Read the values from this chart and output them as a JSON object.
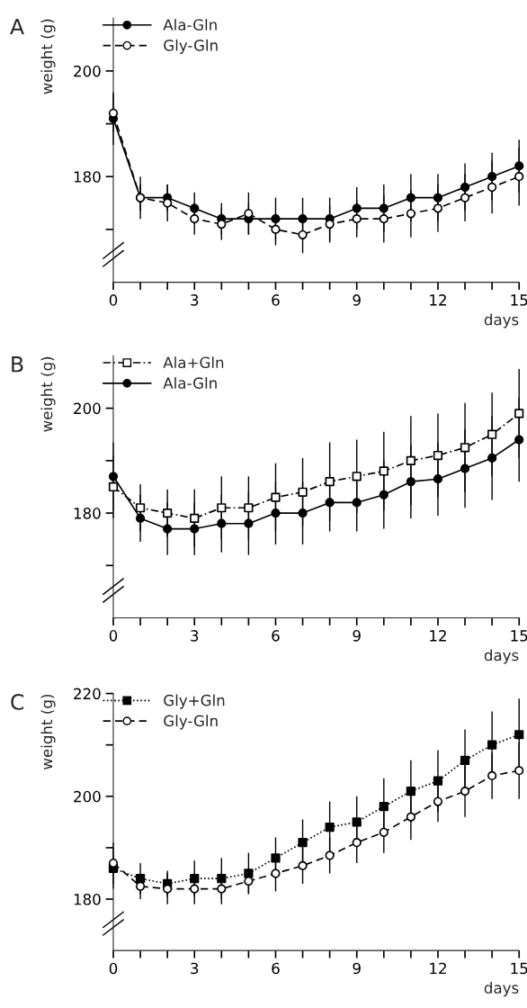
{
  "chart_data": [
    {
      "type": "line",
      "title": "A",
      "xlabel": "days",
      "ylabel": "weight (g)",
      "x": [
        0,
        1,
        2,
        3,
        4,
        5,
        6,
        7,
        8,
        9,
        10,
        11,
        12,
        13,
        14,
        15
      ],
      "xlim": [
        0,
        15
      ],
      "xticks": [
        0,
        {
          "value": 1,
          "label": null
        },
        {
          "value": 2,
          "label": null
        },
        3,
        {
          "value": 4,
          "label": null
        },
        {
          "value": 5,
          "label": null
        },
        6,
        {
          "value": 7,
          "label": null
        },
        {
          "value": 8,
          "label": null
        },
        9,
        {
          "value": 10,
          "label": null
        },
        {
          "value": 11,
          "label": null
        },
        12,
        {
          "value": 13,
          "label": null
        },
        {
          "value": 14,
          "label": null
        },
        15
      ],
      "ylim": [
        160,
        210
      ],
      "yticks": [
        {
          "value": 170,
          "label": null
        },
        180,
        {
          "value": 190,
          "label": null
        },
        200
      ],
      "legend": "top left",
      "grid": false,
      "series": [
        {
          "name": "Ala-Gln",
          "color": "#000000",
          "marker": "circle",
          "line_style": "solid",
          "values": [
            191,
            176,
            176,
            174,
            172,
            172,
            172,
            172,
            172,
            174,
            174,
            176,
            176,
            178,
            180,
            182
          ],
          "errors": [
            5,
            2.5,
            2.5,
            3,
            3,
            3,
            4,
            4,
            4,
            4,
            4.5,
            4.5,
            4.5,
            4.5,
            4.5,
            5
          ]
        },
        {
          "name": "Gly-Gln",
          "color": "#000000",
          "marker": "circle open",
          "line_style": "dashed",
          "values": [
            192,
            176,
            175,
            172,
            171,
            173,
            170,
            169,
            171,
            172,
            172,
            173,
            174,
            176,
            178,
            180
          ],
          "errors": [
            3.5,
            4,
            3.5,
            3,
            3,
            4,
            3,
            3.5,
            3.5,
            3.5,
            4.5,
            4.5,
            4.5,
            4.5,
            5,
            5.5
          ]
        }
      ]
    },
    {
      "type": "line",
      "title": "B",
      "xlabel": "days",
      "ylabel": "weight (g)",
      "x": [
        0,
        1,
        2,
        3,
        4,
        5,
        6,
        7,
        8,
        9,
        10,
        11,
        12,
        13,
        14,
        15
      ],
      "xlim": [
        0,
        15
      ],
      "xticks": [
        0,
        {
          "value": 1,
          "label": null
        },
        {
          "value": 2,
          "label": null
        },
        3,
        {
          "value": 4,
          "label": null
        },
        {
          "value": 5,
          "label": null
        },
        6,
        {
          "value": 7,
          "label": null
        },
        {
          "value": 8,
          "label": null
        },
        9,
        {
          "value": 10,
          "label": null
        },
        {
          "value": 11,
          "label": null
        },
        12,
        {
          "value": 13,
          "label": null
        },
        {
          "value": 14,
          "label": null
        },
        15
      ],
      "ylim": [
        160,
        210
      ],
      "yticks": [
        {
          "value": 170,
          "label": null
        },
        180,
        {
          "value": 190,
          "label": null
        },
        200
      ],
      "legend": "top left",
      "grid": false,
      "series": [
        {
          "name": "Ala+Gln",
          "color": "#000000",
          "marker": "square open",
          "line_style": "dashdot",
          "values": [
            185,
            181,
            180,
            179,
            181,
            181,
            183,
            184,
            186,
            187,
            188,
            190,
            191,
            192.5,
            195,
            199
          ],
          "errors": [
            6,
            4.5,
            4.5,
            5.5,
            6,
            6,
            6.5,
            6.5,
            7.5,
            7,
            7.5,
            8.5,
            8,
            8.5,
            8,
            8.5
          ]
        },
        {
          "name": "Ala-Gln",
          "color": "#000000",
          "marker": "circle",
          "line_style": "solid",
          "values": [
            187,
            179,
            177,
            177,
            178,
            178,
            180,
            180,
            182,
            182,
            183.5,
            186,
            186.5,
            188.5,
            190.5,
            194
          ],
          "errors": [
            6.5,
            4.5,
            5,
            5,
            5.5,
            6,
            6,
            6,
            5.5,
            5.5,
            6.5,
            7,
            7,
            7.5,
            8,
            8
          ]
        }
      ]
    },
    {
      "type": "line",
      "title": "C",
      "xlabel": "days",
      "ylabel": "weight (g)",
      "x": [
        0,
        1,
        2,
        3,
        4,
        5,
        6,
        7,
        8,
        9,
        10,
        11,
        12,
        13,
        14,
        15
      ],
      "xlim": [
        0,
        15
      ],
      "xticks": [
        0,
        {
          "value": 1,
          "label": null
        },
        {
          "value": 2,
          "label": null
        },
        3,
        {
          "value": 4,
          "label": null
        },
        {
          "value": 5,
          "label": null
        },
        6,
        {
          "value": 7,
          "label": null
        },
        {
          "value": 8,
          "label": null
        },
        9,
        {
          "value": 10,
          "label": null
        },
        {
          "value": 11,
          "label": null
        },
        12,
        {
          "value": 13,
          "label": null
        },
        {
          "value": 14,
          "label": null
        },
        15
      ],
      "ylim": [
        170,
        220
      ],
      "yticks": [
        180,
        {
          "value": 190,
          "label": null
        },
        200,
        {
          "value": 210,
          "label": null
        },
        220
      ],
      "legend": "top left",
      "grid": false,
      "series": [
        {
          "name": "Gly+Gln",
          "color": "#000000",
          "marker": "square",
          "line_style": "dotted",
          "values": [
            186,
            184,
            183,
            184,
            184,
            185,
            188,
            191,
            194,
            195,
            198,
            201,
            203,
            207,
            210,
            212
          ],
          "errors": [
            4,
            3,
            2.5,
            3.5,
            4,
            4,
            4,
            4.5,
            5,
            5,
            5.5,
            6,
            6,
            6,
            6.5,
            7
          ]
        },
        {
          "name": "Gly-Gln",
          "color": "#000000",
          "marker": "circle open",
          "line_style": "dashed",
          "values": [
            187,
            182.5,
            182,
            182,
            182,
            183.5,
            185,
            186.5,
            188.5,
            191,
            193,
            196,
            199,
            201,
            204,
            205
          ],
          "errors": [
            4,
            2.5,
            3,
            3,
            3,
            2.5,
            3.5,
            3.5,
            3.5,
            4,
            4,
            4.5,
            4,
            5,
            4.5,
            5.5
          ]
        }
      ]
    }
  ]
}
